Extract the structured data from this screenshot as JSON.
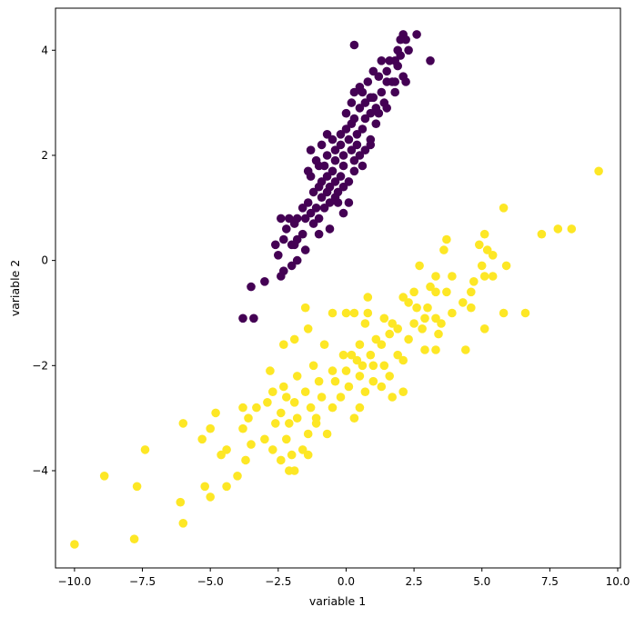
{
  "chart_data": {
    "type": "scatter",
    "title": "",
    "xlabel": "variable 1",
    "ylabel": "variable 2",
    "xlim": [
      -10.7,
      10.1
    ],
    "ylim": [
      -5.85,
      4.8
    ],
    "grid": false,
    "legend": "none",
    "xticks": [
      -10.0,
      -7.5,
      -5.0,
      -2.5,
      0.0,
      2.5,
      5.0,
      7.5,
      10.0
    ],
    "xtick_labels": [
      "−10.0",
      "−7.5",
      "−5.0",
      "−2.5",
      "0.0",
      "2.5",
      "5.0",
      "7.5",
      "10.0"
    ],
    "yticks": [
      -4,
      -2,
      0,
      2,
      4
    ],
    "ytick_labels": [
      "−4",
      "−2",
      "0",
      "2",
      "4"
    ],
    "series": [
      {
        "color": "#440154",
        "points": [
          [
            0.3,
            4.1
          ],
          [
            2.6,
            4.3
          ],
          [
            2.1,
            4.3
          ],
          [
            2.2,
            4.2
          ],
          [
            2.0,
            4.2
          ],
          [
            1.9,
            4.0
          ],
          [
            2.3,
            4.0
          ],
          [
            3.1,
            3.8
          ],
          [
            1.8,
            3.8
          ],
          [
            1.6,
            3.8
          ],
          [
            1.9,
            3.7
          ],
          [
            2.1,
            3.5
          ],
          [
            1.5,
            3.6
          ],
          [
            1.2,
            3.5
          ],
          [
            1.8,
            3.4
          ],
          [
            2.2,
            3.4
          ],
          [
            0.5,
            3.3
          ],
          [
            1.5,
            3.4
          ],
          [
            0.6,
            3.2
          ],
          [
            0.9,
            3.1
          ],
          [
            1.3,
            3.2
          ],
          [
            0.3,
            3.2
          ],
          [
            0.7,
            3.0
          ],
          [
            1.0,
            3.1
          ],
          [
            1.4,
            3.0
          ],
          [
            1.8,
            3.2
          ],
          [
            0.2,
            3.0
          ],
          [
            0.5,
            2.9
          ],
          [
            0.9,
            2.8
          ],
          [
            1.2,
            2.8
          ],
          [
            1.5,
            2.9
          ],
          [
            0.0,
            2.8
          ],
          [
            0.3,
            2.7
          ],
          [
            0.7,
            2.7
          ],
          [
            1.1,
            2.6
          ],
          [
            0.6,
            2.5
          ],
          [
            0.9,
            2.3
          ],
          [
            0.2,
            2.6
          ],
          [
            0.4,
            2.4
          ],
          [
            -0.2,
            2.4
          ],
          [
            0.1,
            2.3
          ],
          [
            0.4,
            2.2
          ],
          [
            0.7,
            2.1
          ],
          [
            -0.5,
            2.3
          ],
          [
            -0.2,
            2.2
          ],
          [
            0.2,
            2.1
          ],
          [
            0.5,
            2.0
          ],
          [
            0.9,
            2.2
          ],
          [
            -0.4,
            2.1
          ],
          [
            -0.1,
            2.0
          ],
          [
            0.3,
            1.9
          ],
          [
            0.6,
            1.8
          ],
          [
            -0.7,
            2.0
          ],
          [
            -0.4,
            1.9
          ],
          [
            -0.1,
            1.8
          ],
          [
            0.3,
            1.7
          ],
          [
            -0.8,
            1.8
          ],
          [
            -0.5,
            1.7
          ],
          [
            -0.2,
            1.6
          ],
          [
            0.1,
            1.5
          ],
          [
            -1.0,
            1.8
          ],
          [
            -0.7,
            1.6
          ],
          [
            -0.4,
            1.5
          ],
          [
            -0.1,
            1.4
          ],
          [
            -0.9,
            1.5
          ],
          [
            -0.6,
            1.4
          ],
          [
            -0.3,
            1.3
          ],
          [
            -1.3,
            1.6
          ],
          [
            -1.0,
            1.4
          ],
          [
            -0.7,
            1.3
          ],
          [
            -0.4,
            1.2
          ],
          [
            -1.2,
            1.3
          ],
          [
            -0.9,
            1.2
          ],
          [
            -0.6,
            1.1
          ],
          [
            -1.4,
            1.1
          ],
          [
            -1.1,
            1.0
          ],
          [
            -0.8,
            1.0
          ],
          [
            -1.6,
            1.0
          ],
          [
            -1.3,
            0.9
          ],
          [
            -0.1,
            0.9
          ],
          [
            -1.0,
            0.8
          ],
          [
            -1.5,
            0.8
          ],
          [
            -1.8,
            0.8
          ],
          [
            -2.1,
            0.8
          ],
          [
            -2.4,
            0.8
          ],
          [
            -1.9,
            0.7
          ],
          [
            -1.2,
            0.7
          ],
          [
            -1.6,
            0.5
          ],
          [
            -2.2,
            0.6
          ],
          [
            -1.0,
            0.5
          ],
          [
            -1.8,
            0.4
          ],
          [
            -2.3,
            0.4
          ],
          [
            -2.0,
            0.3
          ],
          [
            -1.5,
            0.2
          ],
          [
            -2.6,
            0.3
          ],
          [
            -2.5,
            0.1
          ],
          [
            -1.8,
            0.0
          ],
          [
            -2.0,
            -0.1
          ],
          [
            -2.3,
            -0.2
          ],
          [
            -2.4,
            -0.3
          ],
          [
            -3.0,
            -0.4
          ],
          [
            -3.5,
            -0.5
          ],
          [
            -3.8,
            -1.1
          ],
          [
            -3.4,
            -1.1
          ],
          [
            -1.3,
            2.1
          ],
          [
            -0.9,
            2.2
          ],
          [
            -0.7,
            2.4
          ],
          [
            -1.1,
            1.9
          ],
          [
            -1.4,
            1.7
          ],
          [
            1.3,
            3.8
          ],
          [
            1.0,
            3.6
          ],
          [
            2.0,
            3.9
          ],
          [
            1.7,
            3.4
          ],
          [
            0.8,
            3.4
          ],
          [
            -0.3,
            1.1
          ],
          [
            -0.6,
            0.6
          ],
          [
            -1.9,
            0.3
          ],
          [
            0.0,
            2.5
          ],
          [
            1.1,
            2.9
          ],
          [
            0.1,
            1.1
          ]
        ]
      },
      {
        "color": "#fde725",
        "points": [
          [
            9.3,
            1.7
          ],
          [
            5.8,
            1.0
          ],
          [
            8.3,
            0.6
          ],
          [
            7.8,
            0.6
          ],
          [
            7.2,
            0.5
          ],
          [
            5.1,
            0.5
          ],
          [
            4.9,
            0.3
          ],
          [
            3.7,
            0.4
          ],
          [
            3.6,
            0.2
          ],
          [
            5.2,
            0.2
          ],
          [
            5.4,
            0.1
          ],
          [
            2.7,
            -0.1
          ],
          [
            3.9,
            -0.3
          ],
          [
            5.0,
            -0.1
          ],
          [
            5.9,
            -0.1
          ],
          [
            3.3,
            -0.3
          ],
          [
            5.1,
            -0.3
          ],
          [
            5.4,
            -0.3
          ],
          [
            3.1,
            -0.5
          ],
          [
            2.5,
            -0.6
          ],
          [
            4.7,
            -0.4
          ],
          [
            3.3,
            -0.6
          ],
          [
            3.7,
            -0.6
          ],
          [
            2.1,
            -0.7
          ],
          [
            2.3,
            -0.8
          ],
          [
            0.8,
            -0.7
          ],
          [
            4.6,
            -0.6
          ],
          [
            4.3,
            -0.8
          ],
          [
            2.6,
            -0.9
          ],
          [
            3.0,
            -0.9
          ],
          [
            3.9,
            -1.0
          ],
          [
            2.9,
            -1.1
          ],
          [
            4.6,
            -0.9
          ],
          [
            3.3,
            -1.1
          ],
          [
            3.5,
            -1.2
          ],
          [
            6.6,
            -1.0
          ],
          [
            5.8,
            -1.0
          ],
          [
            1.4,
            -1.1
          ],
          [
            1.7,
            -1.2
          ],
          [
            2.5,
            -1.2
          ],
          [
            1.9,
            -1.3
          ],
          [
            0.7,
            -1.2
          ],
          [
            5.1,
            -1.3
          ],
          [
            2.8,
            -1.3
          ],
          [
            3.4,
            -1.4
          ],
          [
            1.6,
            -1.4
          ],
          [
            1.1,
            -1.5
          ],
          [
            2.3,
            -1.5
          ],
          [
            0.5,
            -1.6
          ],
          [
            1.3,
            -1.6
          ],
          [
            2.9,
            -1.7
          ],
          [
            3.3,
            -1.7
          ],
          [
            4.4,
            -1.7
          ],
          [
            0.2,
            -1.8
          ],
          [
            0.9,
            -1.8
          ],
          [
            1.9,
            -1.8
          ],
          [
            -1.5,
            -0.9
          ],
          [
            -0.5,
            -1.0
          ],
          [
            0.0,
            -1.0
          ],
          [
            0.3,
            -1.0
          ],
          [
            0.8,
            -1.0
          ],
          [
            -1.4,
            -1.3
          ],
          [
            -1.9,
            -1.5
          ],
          [
            -0.8,
            -1.6
          ],
          [
            -0.1,
            -1.8
          ],
          [
            0.4,
            -1.9
          ],
          [
            1.4,
            -2.0
          ],
          [
            2.1,
            -1.9
          ],
          [
            -2.3,
            -1.6
          ],
          [
            -1.2,
            -2.0
          ],
          [
            -0.5,
            -2.1
          ],
          [
            0.0,
            -2.1
          ],
          [
            0.5,
            -2.2
          ],
          [
            1.0,
            -2.3
          ],
          [
            1.6,
            -2.2
          ],
          [
            -2.8,
            -2.1
          ],
          [
            -1.8,
            -2.2
          ],
          [
            -1.0,
            -2.3
          ],
          [
            -0.4,
            -2.3
          ],
          [
            0.1,
            -2.4
          ],
          [
            0.7,
            -2.5
          ],
          [
            1.3,
            -2.4
          ],
          [
            2.1,
            -2.5
          ],
          [
            -2.3,
            -2.4
          ],
          [
            -1.5,
            -2.5
          ],
          [
            -0.9,
            -2.6
          ],
          [
            -0.2,
            -2.6
          ],
          [
            0.5,
            -2.8
          ],
          [
            1.7,
            -2.6
          ],
          [
            -2.7,
            -2.5
          ],
          [
            -1.9,
            -2.7
          ],
          [
            -1.3,
            -2.8
          ],
          [
            -0.5,
            -2.8
          ],
          [
            0.3,
            -3.0
          ],
          [
            -3.8,
            -2.8
          ],
          [
            -3.3,
            -2.8
          ],
          [
            -2.9,
            -2.7
          ],
          [
            -2.4,
            -2.9
          ],
          [
            -1.8,
            -3.0
          ],
          [
            -1.1,
            -3.1
          ],
          [
            -3.6,
            -3.0
          ],
          [
            -2.6,
            -3.1
          ],
          [
            -2.1,
            -3.1
          ],
          [
            -1.4,
            -3.3
          ],
          [
            -3.8,
            -3.2
          ],
          [
            -3.0,
            -3.4
          ],
          [
            -2.2,
            -3.4
          ],
          [
            -1.6,
            -3.6
          ],
          [
            -4.8,
            -2.9
          ],
          [
            -5.0,
            -3.2
          ],
          [
            -4.4,
            -3.6
          ],
          [
            -3.5,
            -3.5
          ],
          [
            -2.7,
            -3.6
          ],
          [
            -2.0,
            -3.7
          ],
          [
            -5.3,
            -3.4
          ],
          [
            -4.6,
            -3.7
          ],
          [
            -3.7,
            -3.8
          ],
          [
            -2.4,
            -3.8
          ],
          [
            -1.9,
            -4.0
          ],
          [
            -7.4,
            -3.6
          ],
          [
            -6.0,
            -3.1
          ],
          [
            -4.0,
            -4.1
          ],
          [
            -4.4,
            -4.3
          ],
          [
            -5.2,
            -4.3
          ],
          [
            -5.0,
            -4.5
          ],
          [
            -6.1,
            -4.6
          ],
          [
            -7.7,
            -4.3
          ],
          [
            -8.9,
            -4.1
          ],
          [
            -6.0,
            -5.0
          ],
          [
            -7.8,
            -5.3
          ],
          [
            -10.0,
            -5.4
          ],
          [
            -1.1,
            -3.0
          ],
          [
            -2.2,
            -2.6
          ],
          [
            -0.7,
            -3.3
          ],
          [
            1.0,
            -2.0
          ],
          [
            0.6,
            -2.0
          ],
          [
            -2.1,
            -4.0
          ],
          [
            -1.4,
            -3.7
          ]
        ]
      }
    ]
  }
}
